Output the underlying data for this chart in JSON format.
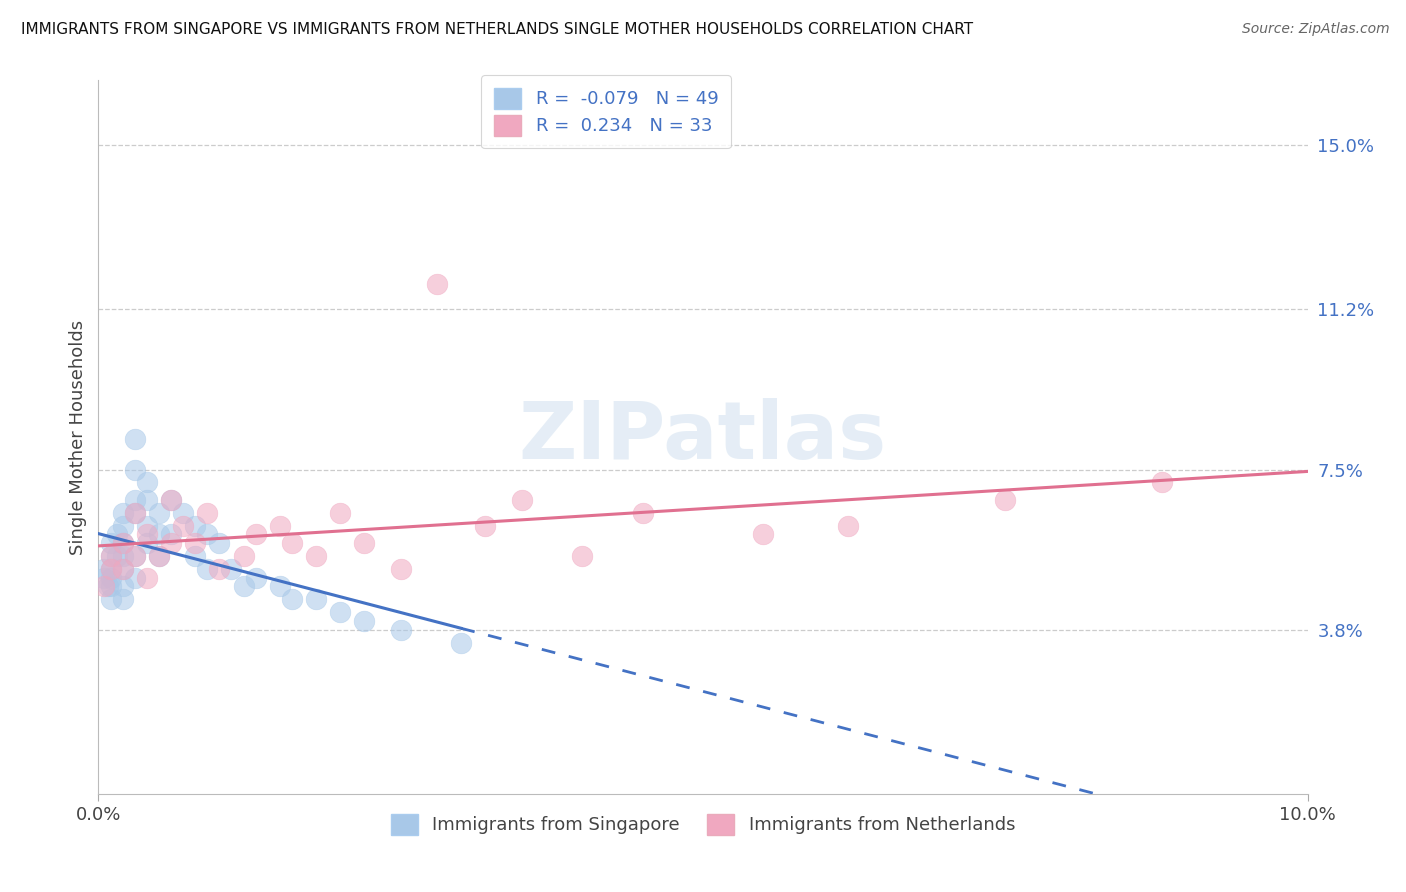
{
  "title": "IMMIGRANTS FROM SINGAPORE VS IMMIGRANTS FROM NETHERLANDS SINGLE MOTHER HOUSEHOLDS CORRELATION CHART",
  "source": "Source: ZipAtlas.com",
  "ylabel": "Single Mother Households",
  "xlim": [
    0.0,
    0.1
  ],
  "ylim": [
    0.0,
    0.165
  ],
  "ytick_labels_right": [
    "15.0%",
    "11.2%",
    "7.5%",
    "3.8%"
  ],
  "ytick_values_right": [
    0.15,
    0.112,
    0.075,
    0.038
  ],
  "r_singapore": -0.079,
  "n_singapore": 49,
  "r_netherlands": 0.234,
  "n_netherlands": 33,
  "color_singapore": "#A8C8E8",
  "color_netherlands": "#F0A8C0",
  "line_color_singapore": "#4472C4",
  "line_color_netherlands": "#E07090",
  "legend_label_singapore": "Immigrants from Singapore",
  "legend_label_netherlands": "Immigrants from Netherlands",
  "watermark": "ZIPatlas",
  "singapore_x": [
    0.0005,
    0.0005,
    0.0008,
    0.001,
    0.001,
    0.001,
    0.001,
    0.001,
    0.001,
    0.0015,
    0.0015,
    0.002,
    0.002,
    0.002,
    0.002,
    0.002,
    0.002,
    0.002,
    0.003,
    0.003,
    0.003,
    0.003,
    0.003,
    0.003,
    0.004,
    0.004,
    0.004,
    0.004,
    0.005,
    0.005,
    0.005,
    0.006,
    0.006,
    0.007,
    0.008,
    0.008,
    0.009,
    0.009,
    0.01,
    0.011,
    0.012,
    0.013,
    0.015,
    0.016,
    0.018,
    0.02,
    0.022,
    0.025,
    0.03
  ],
  "singapore_y": [
    0.05,
    0.052,
    0.048,
    0.055,
    0.058,
    0.052,
    0.05,
    0.048,
    0.045,
    0.06,
    0.055,
    0.065,
    0.062,
    0.058,
    0.055,
    0.052,
    0.048,
    0.045,
    0.075,
    0.082,
    0.068,
    0.065,
    0.055,
    0.05,
    0.072,
    0.068,
    0.062,
    0.058,
    0.065,
    0.06,
    0.055,
    0.068,
    0.06,
    0.065,
    0.062,
    0.055,
    0.06,
    0.052,
    0.058,
    0.052,
    0.048,
    0.05,
    0.048,
    0.045,
    0.045,
    0.042,
    0.04,
    0.038,
    0.035
  ],
  "netherlands_x": [
    0.0005,
    0.001,
    0.001,
    0.002,
    0.002,
    0.003,
    0.003,
    0.004,
    0.004,
    0.005,
    0.006,
    0.006,
    0.007,
    0.008,
    0.009,
    0.01,
    0.012,
    0.013,
    0.015,
    0.016,
    0.018,
    0.02,
    0.022,
    0.025,
    0.028,
    0.032,
    0.035,
    0.04,
    0.045,
    0.055,
    0.062,
    0.075,
    0.088
  ],
  "netherlands_y": [
    0.048,
    0.055,
    0.052,
    0.058,
    0.052,
    0.065,
    0.055,
    0.05,
    0.06,
    0.055,
    0.068,
    0.058,
    0.062,
    0.058,
    0.065,
    0.052,
    0.055,
    0.06,
    0.062,
    0.058,
    0.055,
    0.065,
    0.058,
    0.052,
    0.118,
    0.062,
    0.068,
    0.055,
    0.065,
    0.06,
    0.062,
    0.068,
    0.072
  ]
}
